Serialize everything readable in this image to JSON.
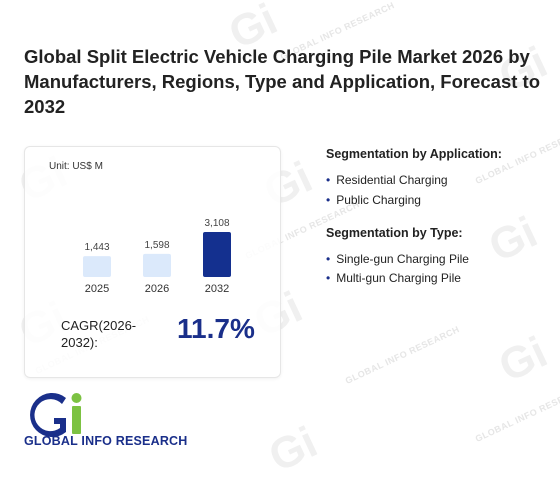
{
  "title": "Global Split Electric Vehicle Charging Pile Market 2026 by Manufacturers, Regions, Type and Application, Forecast to 2032",
  "watermark_text": "GLOBAL INFO RESEARCH",
  "chart_data": {
    "type": "bar",
    "unit_label": "Unit: US$ M",
    "categories": [
      "2025",
      "2026",
      "2032"
    ],
    "values": [
      1443,
      1598,
      3108
    ],
    "value_labels": [
      "1,443",
      "1,598",
      "3,108"
    ],
    "colors": [
      "#dbe9fb",
      "#dbe9fb",
      "#14308f"
    ]
  },
  "cagr": {
    "label": "CAGR(2026-2032):",
    "value": "11.7%"
  },
  "segmentation": {
    "application": {
      "title": "Segmentation by Application:",
      "items": [
        "Residential Charging",
        "Public Charging"
      ]
    },
    "type": {
      "title": "Segmentation by Type:",
      "items": [
        "Single-gun Charging Pile",
        "Multi-gun Charging Pile"
      ]
    }
  },
  "logo": {
    "text": "GLOBAL INFO RESEARCH",
    "colors": {
      "blue": "#1a2f8a",
      "green": "#7cc242"
    }
  }
}
